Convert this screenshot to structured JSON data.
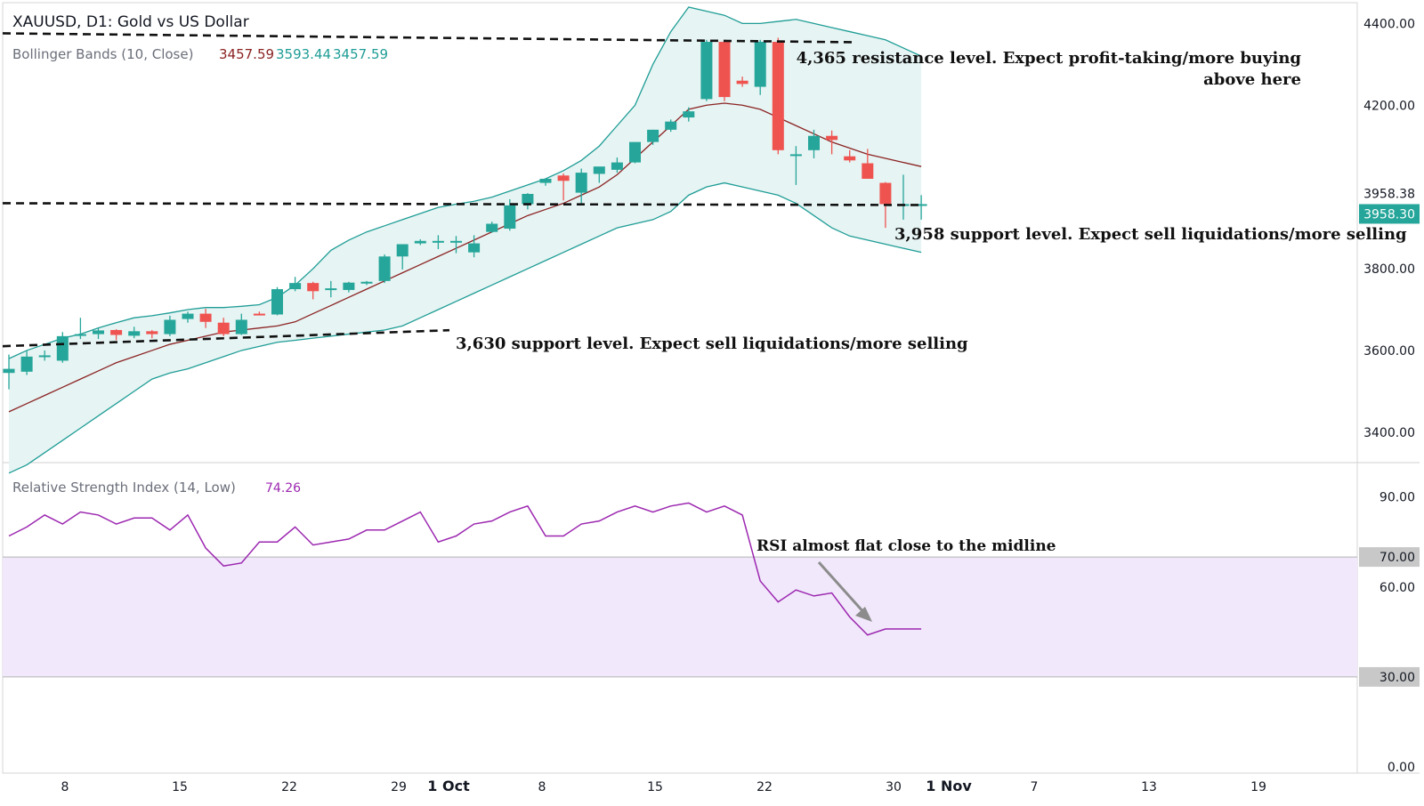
{
  "header": {
    "symbol_title": "XAUUSD, D1: Gold vs US Dollar",
    "bb_label": "Bollinger Bands (10, Close)",
    "bb_values": [
      "3457.59",
      "3593.44",
      "3457.59"
    ],
    "rsi_label": "Relative Strength Index (14, Low)",
    "rsi_value": "74.26"
  },
  "colors": {
    "up": "#26a69a",
    "down": "#ef5350",
    "bb_basis": "#8b2323",
    "bb_band": "#1f9d96",
    "bb_fill": "#e6f4f3",
    "rsi_line": "#9c27b0",
    "rsi_zone": "#f1e8fb",
    "axis_text": "#131722",
    "price_tag": "#26a69a",
    "level_tag": "#c8c8c8"
  },
  "chart_data": [
    {
      "type": "candlestick",
      "title": "XAUUSD, D1: Gold vs US Dollar",
      "ylim": [
        3330,
        4440
      ],
      "y_ticks": [
        "4400.00",
        "4200.00",
        "3800.00",
        "3600.00",
        "3400.00"
      ],
      "last_price_tags": [
        "3958.38",
        "3958.30"
      ],
      "candles": [
        {
          "date": "2025-09-05",
          "o": 3545,
          "h": 3590,
          "l": 3505,
          "c": 3555
        },
        {
          "date": "2025-09-08",
          "o": 3548,
          "h": 3600,
          "l": 3540,
          "c": 3585
        },
        {
          "date": "2025-09-09",
          "o": 3585,
          "h": 3600,
          "l": 3575,
          "c": 3588
        },
        {
          "date": "2025-09-10",
          "o": 3575,
          "h": 3645,
          "l": 3570,
          "c": 3635
        },
        {
          "date": "2025-09-11",
          "o": 3636,
          "h": 3680,
          "l": 3628,
          "c": 3640
        },
        {
          "date": "2025-09-12",
          "o": 3640,
          "h": 3655,
          "l": 3628,
          "c": 3649
        },
        {
          "date": "2025-09-15",
          "o": 3650,
          "h": 3652,
          "l": 3625,
          "c": 3638
        },
        {
          "date": "2025-09-16",
          "o": 3636,
          "h": 3658,
          "l": 3630,
          "c": 3647
        },
        {
          "date": "2025-09-17",
          "o": 3647,
          "h": 3650,
          "l": 3630,
          "c": 3640
        },
        {
          "date": "2025-09-18",
          "o": 3640,
          "h": 3685,
          "l": 3635,
          "c": 3675
        },
        {
          "date": "2025-09-19",
          "o": 3677,
          "h": 3695,
          "l": 3668,
          "c": 3690
        },
        {
          "date": "2025-09-22",
          "o": 3690,
          "h": 3702,
          "l": 3655,
          "c": 3670
        },
        {
          "date": "2025-09-23",
          "o": 3668,
          "h": 3680,
          "l": 3635,
          "c": 3640
        },
        {
          "date": "2025-09-24",
          "o": 3640,
          "h": 3690,
          "l": 3638,
          "c": 3675
        },
        {
          "date": "2025-09-25",
          "o": 3690,
          "h": 3695,
          "l": 3686,
          "c": 3688
        },
        {
          "date": "2025-09-26",
          "o": 3688,
          "h": 3755,
          "l": 3686,
          "c": 3750
        },
        {
          "date": "2025-09-29",
          "o": 3750,
          "h": 3780,
          "l": 3745,
          "c": 3765
        },
        {
          "date": "2025-09-30",
          "o": 3765,
          "h": 3768,
          "l": 3725,
          "c": 3745
        },
        {
          "date": "2025-10-01",
          "o": 3752,
          "h": 3770,
          "l": 3730,
          "c": 3752
        },
        {
          "date": "2025-10-02",
          "o": 3748,
          "h": 3768,
          "l": 3742,
          "c": 3766
        },
        {
          "date": "2025-10-03",
          "o": 3765,
          "h": 3770,
          "l": 3760,
          "c": 3768
        },
        {
          "date": "2025-10-06",
          "o": 3770,
          "h": 3835,
          "l": 3765,
          "c": 3830
        },
        {
          "date": "2025-10-07",
          "o": 3830,
          "h": 3860,
          "l": 3798,
          "c": 3860
        },
        {
          "date": "2025-10-08",
          "o": 3862,
          "h": 3872,
          "l": 3858,
          "c": 3868
        },
        {
          "date": "2025-10-09",
          "o": 3868,
          "h": 3882,
          "l": 3848,
          "c": 3868
        },
        {
          "date": "2025-10-10",
          "o": 3868,
          "h": 3880,
          "l": 3838,
          "c": 3868
        },
        {
          "date": "2025-10-13",
          "o": 3840,
          "h": 3882,
          "l": 3828,
          "c": 3862
        },
        {
          "date": "2025-10-14",
          "o": 3890,
          "h": 3915,
          "l": 3888,
          "c": 3910
        },
        {
          "date": "2025-10-15",
          "o": 3898,
          "h": 3970,
          "l": 3893,
          "c": 3955
        },
        {
          "date": "2025-10-16",
          "o": 3958,
          "h": 3985,
          "l": 3945,
          "c": 3983
        },
        {
          "date": "2025-10-17",
          "o": 4010,
          "h": 4020,
          "l": 4003,
          "c": 4020
        },
        {
          "date": "2025-10-20",
          "o": 4028,
          "h": 4033,
          "l": 3967,
          "c": 4015
        },
        {
          "date": "2025-10-21",
          "o": 3986,
          "h": 4045,
          "l": 3960,
          "c": 4035
        },
        {
          "date": "2025-10-22",
          "o": 4032,
          "h": 4040,
          "l": 4010,
          "c": 4050
        },
        {
          "date": "2025-10-23",
          "o": 4042,
          "h": 4072,
          "l": 4035,
          "c": 4060
        },
        {
          "date": "2025-10-24",
          "o": 4060,
          "h": 4105,
          "l": 4058,
          "c": 4110
        },
        {
          "date": "2025-10-27",
          "o": 4110,
          "h": 4140,
          "l": 4103,
          "c": 4140
        },
        {
          "date": "2025-10-28",
          "o": 4140,
          "h": 4165,
          "l": 4135,
          "c": 4160
        },
        {
          "date": "2025-10-29",
          "o": 4170,
          "h": 4195,
          "l": 4160,
          "c": 4185
        },
        {
          "date": "2025-10-30",
          "o": 4215,
          "h": 4360,
          "l": 4210,
          "c": 4355
        },
        {
          "date": "2025-10-31",
          "o": 4355,
          "h": 4360,
          "l": 4210,
          "c": 4220
        },
        {
          "date": "2025-11-03",
          "o": 4260,
          "h": 4270,
          "l": 4245,
          "c": 4252
        },
        {
          "date": "2025-11-04",
          "o": 4245,
          "h": 4360,
          "l": 4225,
          "c": 4355
        },
        {
          "date": "2025-11-05",
          "o": 4355,
          "h": 4365,
          "l": 4080,
          "c": 4090
        },
        {
          "date": "2025-11-06",
          "o": 4080,
          "h": 4100,
          "l": 4005,
          "c": 4080
        },
        {
          "date": "2025-11-07",
          "o": 4090,
          "h": 4140,
          "l": 4070,
          "c": 4125
        },
        {
          "date": "2025-11-10",
          "o": 4125,
          "h": 4138,
          "l": 4080,
          "c": 4115
        },
        {
          "date": "2025-11-11",
          "o": 4075,
          "h": 4090,
          "l": 4060,
          "c": 4065
        },
        {
          "date": "2025-11-12",
          "o": 4058,
          "h": 4093,
          "l": 4020,
          "c": 4020
        },
        {
          "date": "2025-11-13",
          "o": 4010,
          "h": 4012,
          "l": 3900,
          "c": 3958
        },
        {
          "date": "2025-11-14",
          "o": 3958,
          "h": 4030,
          "l": 3920,
          "c": 3958
        },
        {
          "date": "2025-11-17",
          "o": 3958,
          "h": 3980,
          "l": 3920,
          "c": 3958
        }
      ],
      "bollinger": {
        "upper": [
          3580,
          3600,
          3615,
          3630,
          3640,
          3655,
          3668,
          3680,
          3685,
          3692,
          3700,
          3705,
          3705,
          3708,
          3712,
          3730,
          3760,
          3800,
          3845,
          3870,
          3890,
          3905,
          3920,
          3935,
          3950,
          3958,
          3965,
          3975,
          3990,
          4005,
          4020,
          4040,
          4065,
          4100,
          4150,
          4200,
          4300,
          4380,
          4440,
          4430,
          4420,
          4400,
          4400,
          4405,
          4410,
          4400,
          4390,
          4380,
          4370,
          4360,
          4340,
          4320
        ],
        "middle": [
          3450,
          3470,
          3490,
          3510,
          3530,
          3550,
          3570,
          3585,
          3600,
          3615,
          3625,
          3635,
          3645,
          3650,
          3655,
          3660,
          3670,
          3690,
          3710,
          3730,
          3750,
          3770,
          3790,
          3810,
          3830,
          3850,
          3870,
          3890,
          3910,
          3930,
          3945,
          3960,
          3980,
          4000,
          4030,
          4070,
          4110,
          4150,
          4190,
          4200,
          4205,
          4200,
          4190,
          4170,
          4150,
          4130,
          4110,
          4095,
          4080,
          4070,
          4060,
          4050
        ],
        "lower": [
          3300,
          3320,
          3350,
          3380,
          3410,
          3440,
          3470,
          3500,
          3530,
          3545,
          3555,
          3570,
          3585,
          3600,
          3610,
          3620,
          3625,
          3630,
          3635,
          3640,
          3645,
          3650,
          3660,
          3680,
          3700,
          3720,
          3740,
          3760,
          3780,
          3800,
          3820,
          3840,
          3860,
          3880,
          3900,
          3910,
          3920,
          3940,
          3980,
          4000,
          4010,
          4000,
          3990,
          3980,
          3960,
          3930,
          3900,
          3880,
          3870,
          3860,
          3850,
          3840
        ]
      },
      "levels": [
        {
          "value": 4365,
          "label_lines": [
            "4,365 resistance level. Expect profit-taking/more buying",
            "above here"
          ]
        },
        {
          "value": 3958,
          "label_lines": [
            "3,958 support level. Expect sell liquidations/more selling"
          ]
        },
        {
          "value": 3630,
          "label_lines": [
            "3,630 support level. Expect sell liquidations/more selling"
          ]
        }
      ]
    },
    {
      "type": "line",
      "title": "Relative Strength Index (14, Low)",
      "ylim": [
        0,
        100
      ],
      "y_ticks": [
        "90.00",
        "60.00",
        "0.00"
      ],
      "bands": [
        "70.00",
        "30.00"
      ],
      "values": [
        77,
        80,
        84,
        81,
        85,
        84,
        81,
        83,
        83,
        79,
        84,
        73,
        67,
        68,
        75,
        75,
        80,
        74,
        75,
        76,
        79,
        79,
        82,
        85,
        75,
        77,
        81,
        82,
        85,
        87,
        77,
        77,
        81,
        82,
        85,
        87,
        85,
        87,
        88,
        85,
        87,
        84,
        62,
        55,
        59,
        57,
        58,
        50,
        44,
        46,
        46,
        46
      ],
      "annotation": "RSI almost flat close to the midline"
    }
  ],
  "x_axis": {
    "labels": [
      "8",
      "15",
      "22",
      "29",
      "1 Oct",
      "8",
      "15",
      "22",
      "30",
      "1 Nov",
      "7",
      "13",
      "19"
    ]
  }
}
